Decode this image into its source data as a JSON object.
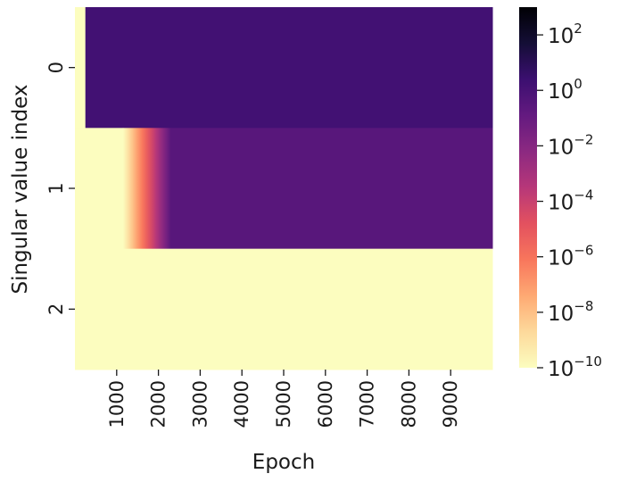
{
  "chart_data": {
    "type": "heatmap",
    "title": "",
    "xlabel": "Epoch",
    "ylabel": "Singular value index",
    "x_range": [
      0,
      10000
    ],
    "x_ticks": [
      "1000",
      "2000",
      "3000",
      "4000",
      "5000",
      "6000",
      "7000",
      "8000",
      "9000"
    ],
    "x_tick_values": [
      1000,
      2000,
      3000,
      4000,
      5000,
      6000,
      7000,
      8000,
      9000
    ],
    "y_ticks": [
      "0",
      "1",
      "2"
    ],
    "colormap": "magma_r",
    "color_scale": "log",
    "color_range": [
      1e-10,
      1000
    ],
    "colorbar_ticks": [
      {
        "value": 100,
        "base": "10",
        "exp": "2"
      },
      {
        "value": 1,
        "base": "10",
        "exp": "0"
      },
      {
        "value": 0.01,
        "base": "10",
        "exp": "−2"
      },
      {
        "value": 0.0001,
        "base": "10",
        "exp": "−4"
      },
      {
        "value": 1e-06,
        "base": "10",
        "exp": "−6"
      },
      {
        "value": 1e-08,
        "base": "10",
        "exp": "−8"
      },
      {
        "value": 1e-10,
        "base": "10",
        "exp": "−10"
      }
    ],
    "rows": [
      {
        "index": 0,
        "segments": [
          {
            "x_start": 0,
            "x_end": 250,
            "value": 1e-10
          },
          {
            "x_start": 250,
            "x_end": 10000,
            "value": 1.5
          }
        ]
      },
      {
        "index": 1,
        "segments": [
          {
            "x_start": 0,
            "x_end": 1150,
            "value": 1e-10
          },
          {
            "x_start": 1150,
            "x_end": 2300,
            "value_from": 1e-10,
            "value_to": 0.3
          },
          {
            "x_start": 2300,
            "x_end": 10000,
            "value": 0.3
          }
        ]
      },
      {
        "index": 2,
        "segments": [
          {
            "x_start": 0,
            "x_end": 10000,
            "value": 1e-10
          }
        ]
      }
    ],
    "grid": false,
    "legend": "colorbar-right"
  }
}
